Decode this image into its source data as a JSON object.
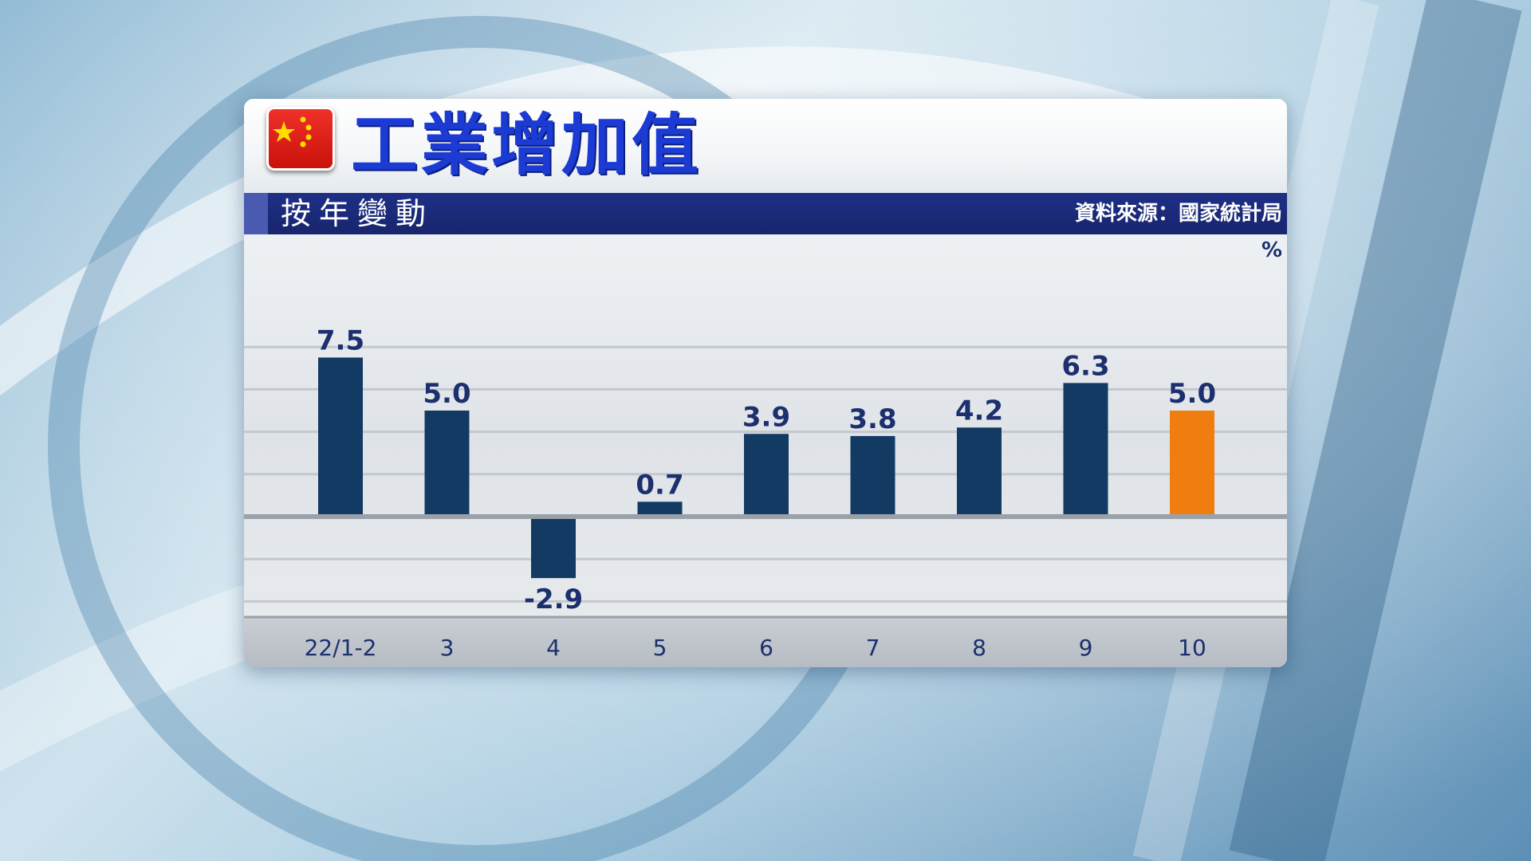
{
  "header": {
    "title": "工業增加值",
    "subtitle": "按年變動",
    "source": "資料來源：國家統計局"
  },
  "colors": {
    "bar": "#123a63",
    "highlight": "#f07d10",
    "title": "#1b3bd4",
    "subbar": "#1e2f86",
    "label": "#1c2f6e"
  },
  "chart_data": {
    "type": "bar",
    "categories": [
      "22/1-2",
      "3",
      "4",
      "5",
      "6",
      "7",
      "8",
      "9",
      "10"
    ],
    "values": [
      7.5,
      5.0,
      -2.9,
      0.7,
      3.9,
      3.8,
      4.2,
      6.3,
      5.0
    ],
    "value_labels": [
      "7.5",
      "5.0",
      "-2.9",
      "0.7",
      "3.9",
      "3.8",
      "4.2",
      "6.3",
      "5.0"
    ],
    "highlight_index": 8,
    "unit": "%",
    "title": "工業增加值",
    "subtitle": "按年變動",
    "xlabel": "",
    "ylabel": "",
    "ylim": [
      -4.5,
      10
    ],
    "grid": true,
    "legend": "none"
  }
}
